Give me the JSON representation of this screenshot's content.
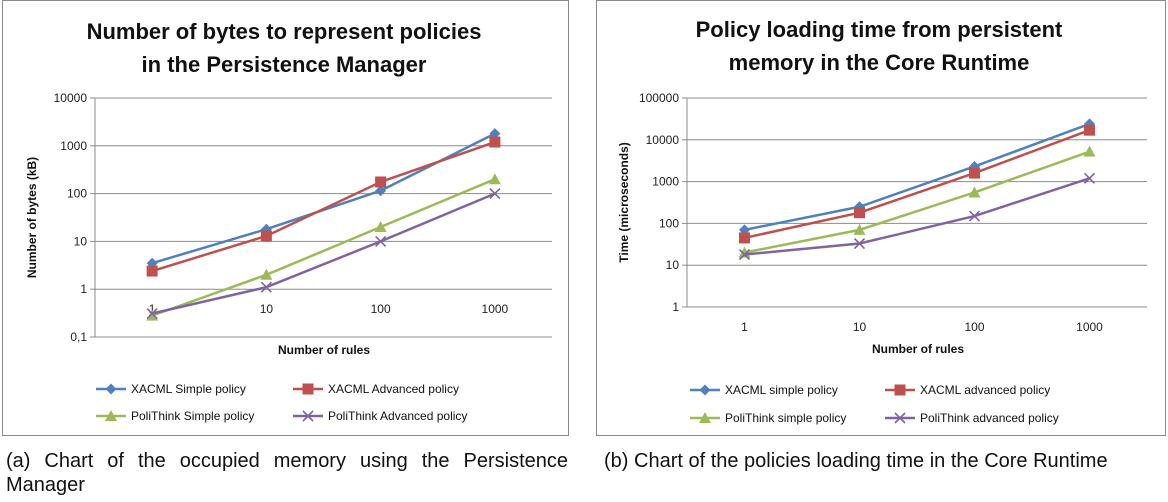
{
  "chart_data": [
    {
      "type": "line",
      "title_lines": [
        "Number of bytes to represent policies",
        "in the Persistence Manager"
      ],
      "xlabel": "Number of rules",
      "ylabel": "Number of bytes (kB)",
      "x": [
        "1",
        "10",
        "100",
        "1000"
      ],
      "y_scale": "log",
      "ylim": [
        0.1,
        10000
      ],
      "y_ticks": [
        "0,1",
        "1",
        "10",
        "100",
        "1000",
        "10000"
      ],
      "grid": true,
      "legend_position": "bottom",
      "series": [
        {
          "name": "XACML Simple policy",
          "values": [
            3.5,
            18,
            115,
            1800
          ],
          "color": "#4F81BD",
          "marker": "diamond"
        },
        {
          "name": "XACML Advanced policy",
          "values": [
            2.4,
            13,
            175,
            1200
          ],
          "color": "#C0504D",
          "marker": "square"
        },
        {
          "name": "PoliThink Simple policy",
          "values": [
            0.28,
            2,
            20,
            200
          ],
          "color": "#9BBB59",
          "marker": "triangle"
        },
        {
          "name": "PoliThink Advanced policy",
          "values": [
            0.31,
            1.1,
            10,
            100
          ],
          "color": "#8064A2",
          "marker": "x"
        }
      ]
    },
    {
      "type": "line",
      "title_lines": [
        "Policy loading time from persistent",
        "memory in the Core Runtime"
      ],
      "xlabel": "Number of rules",
      "ylabel": "Time (microseconds)",
      "x": [
        "1",
        "10",
        "100",
        "1000"
      ],
      "y_scale": "log",
      "ylim": [
        1,
        100000
      ],
      "y_ticks": [
        "1",
        "10",
        "100",
        "1000",
        "10000",
        "100000"
      ],
      "grid": true,
      "legend_position": "bottom",
      "series": [
        {
          "name": "XACML simple policy",
          "values": [
            70,
            250,
            2300,
            24000
          ],
          "color": "#4F81BD",
          "marker": "diamond"
        },
        {
          "name": "XACML advanced policy",
          "values": [
            45,
            180,
            1600,
            17000
          ],
          "color": "#C0504D",
          "marker": "square"
        },
        {
          "name": "PoliThink simple policy",
          "values": [
            20,
            70,
            550,
            5200
          ],
          "color": "#9BBB59",
          "marker": "triangle"
        },
        {
          "name": "PoliThink advanced policy",
          "values": [
            18,
            33,
            150,
            1200
          ],
          "color": "#8064A2",
          "marker": "x"
        }
      ]
    }
  ],
  "captions": {
    "a": "(a) Chart of the occupied memory using the Persistence Manager",
    "b": "(b) Chart of the policies loading time in the Core Runtime"
  }
}
